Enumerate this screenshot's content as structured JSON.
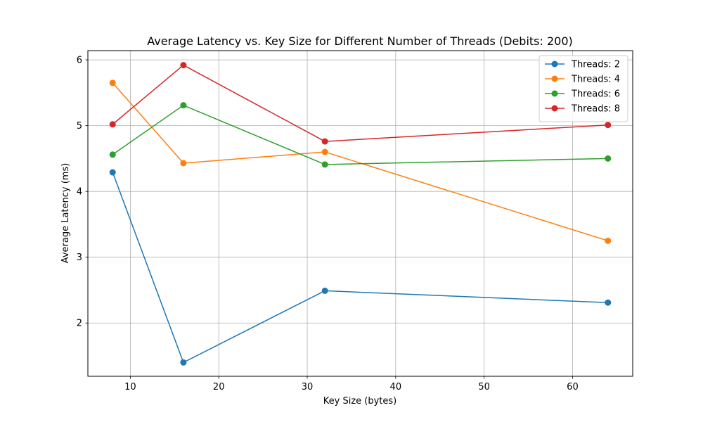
{
  "chart_data": {
    "type": "line",
    "title": "Average Latency vs. Key Size for Different Number of Threads (Debits: 200)",
    "xlabel": "Key Size (bytes)",
    "ylabel": "Average Latency (ms)",
    "xlim": [
      5.2,
      66.8
    ],
    "ylim": [
      1.19,
      6.14
    ],
    "xticks": [
      10,
      20,
      30,
      40,
      50,
      60
    ],
    "yticks": [
      2,
      3,
      4,
      5,
      6
    ],
    "grid": true,
    "legend_position": "top-right",
    "x": [
      8,
      16,
      32,
      64
    ],
    "series": [
      {
        "name": "Threads: 2",
        "color": "#1f77b4",
        "values": [
          4.29,
          1.4,
          2.49,
          2.31
        ]
      },
      {
        "name": "Threads: 4",
        "color": "#ff7f0e",
        "values": [
          5.65,
          4.43,
          4.6,
          3.25
        ]
      },
      {
        "name": "Threads: 6",
        "color": "#2ca02c",
        "values": [
          4.56,
          5.31,
          4.41,
          4.5
        ]
      },
      {
        "name": "Threads: 8",
        "color": "#d62728",
        "values": [
          5.02,
          5.92,
          4.76,
          5.01
        ]
      }
    ]
  }
}
